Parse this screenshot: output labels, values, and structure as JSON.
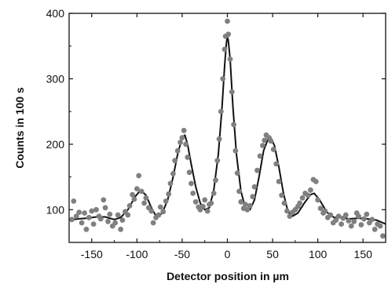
{
  "chart_data": {
    "type": "scatter",
    "title": "",
    "xlabel": "Detector position in µm",
    "ylabel": "Counts in 100 s",
    "xlim": [
      -175,
      175
    ],
    "ylim": [
      50,
      400
    ],
    "x_ticks": [
      -150,
      -100,
      -50,
      0,
      50,
      100,
      150
    ],
    "x_tick_labels": [
      "-150",
      "-100",
      "-50",
      "0",
      "50",
      "100",
      "150"
    ],
    "y_ticks": [
      100,
      200,
      300,
      400
    ],
    "y_tick_labels": [
      "100",
      "200",
      "300",
      "400"
    ],
    "grid": false,
    "legend": "none",
    "colors": {
      "points": "#808080",
      "fit": "#111111",
      "axes": "#111111"
    },
    "series": [
      {
        "type": "scatter",
        "values_xy": [
          [
            -172,
            85
          ],
          [
            -170,
            113
          ],
          [
            -167,
            90
          ],
          [
            -164,
            96
          ],
          [
            -161,
            80
          ],
          [
            -158,
            95
          ],
          [
            -156,
            70
          ],
          [
            -153,
            88
          ],
          [
            -150,
            98
          ],
          [
            -148,
            78
          ],
          [
            -145,
            100
          ],
          [
            -142,
            90
          ],
          [
            -140,
            86
          ],
          [
            -137,
            115
          ],
          [
            -135,
            103
          ],
          [
            -132,
            82
          ],
          [
            -130,
            93
          ],
          [
            -127,
            75
          ],
          [
            -124,
            80
          ],
          [
            -121,
            92
          ],
          [
            -118,
            70
          ],
          [
            -116,
            84
          ],
          [
            -113,
            97
          ],
          [
            -110,
            92
          ],
          [
            -108,
            106
          ],
          [
            -105,
            123
          ],
          [
            -103,
            116
          ],
          [
            -100,
            132
          ],
          [
            -98,
            152
          ],
          [
            -95,
            128
          ],
          [
            -92,
            110
          ],
          [
            -90,
            118
          ],
          [
            -87,
            103
          ],
          [
            -84,
            98
          ],
          [
            -82,
            80
          ],
          [
            -79,
            88
          ],
          [
            -76,
            92
          ],
          [
            -74,
            104
          ],
          [
            -71,
            97
          ],
          [
            -68,
            113
          ],
          [
            -65,
            124
          ],
          [
            -63,
            140
          ],
          [
            -60,
            155
          ],
          [
            -58,
            175
          ],
          [
            -55,
            190
          ],
          [
            -52,
            203
          ],
          [
            -50,
            210
          ],
          [
            -48,
            221
          ],
          [
            -46,
            200
          ],
          [
            -44,
            180
          ],
          [
            -42,
            157
          ],
          [
            -40,
            140
          ],
          [
            -38,
            125
          ],
          [
            -35,
            112
          ],
          [
            -32,
            104
          ],
          [
            -30,
            100
          ],
          [
            -27,
            105
          ],
          [
            -25,
            115
          ],
          [
            -22,
            98
          ],
          [
            -20,
            108
          ],
          [
            -18,
            110
          ],
          [
            -15,
            125
          ],
          [
            -13,
            145
          ],
          [
            -11,
            175
          ],
          [
            -9,
            208
          ],
          [
            -7,
            250
          ],
          [
            -5,
            300
          ],
          [
            -3,
            345
          ],
          [
            -2,
            365
          ],
          [
            0,
            388
          ],
          [
            1,
            368
          ],
          [
            3,
            330
          ],
          [
            5,
            280
          ],
          [
            7,
            230
          ],
          [
            9,
            190
          ],
          [
            11,
            156
          ],
          [
            13,
            128
          ],
          [
            15,
            112
          ],
          [
            18,
            102
          ],
          [
            20,
            108
          ],
          [
            22,
            100
          ],
          [
            25,
            106
          ],
          [
            28,
            120
          ],
          [
            30,
            135
          ],
          [
            33,
            160
          ],
          [
            36,
            182
          ],
          [
            39,
            198
          ],
          [
            41,
            206
          ],
          [
            43,
            214
          ],
          [
            46,
            210
          ],
          [
            48,
            205
          ],
          [
            51,
            192
          ],
          [
            54,
            170
          ],
          [
            57,
            143
          ],
          [
            60,
            122
          ],
          [
            63,
            110
          ],
          [
            66,
            98
          ],
          [
            69,
            90
          ],
          [
            72,
            96
          ],
          [
            75,
            100
          ],
          [
            78,
            105
          ],
          [
            80,
            110
          ],
          [
            83,
            118
          ],
          [
            86,
            125
          ],
          [
            89,
            122
          ],
          [
            92,
            130
          ],
          [
            95,
            146
          ],
          [
            98,
            143
          ],
          [
            100,
            115
          ],
          [
            103,
            102
          ],
          [
            106,
            95
          ],
          [
            108,
            98
          ],
          [
            111,
            88
          ],
          [
            114,
            92
          ],
          [
            117,
            80
          ],
          [
            120,
            84
          ],
          [
            123,
            90
          ],
          [
            126,
            78
          ],
          [
            128,
            87
          ],
          [
            131,
            92
          ],
          [
            134,
            83
          ],
          [
            137,
            75
          ],
          [
            140,
            82
          ],
          [
            143,
            95
          ],
          [
            145,
            90
          ],
          [
            148,
            77
          ],
          [
            151,
            86
          ],
          [
            154,
            93
          ],
          [
            157,
            80
          ],
          [
            160,
            85
          ],
          [
            163,
            70
          ],
          [
            166,
            78
          ],
          [
            169,
            75
          ],
          [
            172,
            60
          ]
        ]
      },
      {
        "type": "line",
        "values_xy": [
          [
            -175,
            84
          ],
          [
            -165,
            86
          ],
          [
            -155,
            87
          ],
          [
            -145,
            89
          ],
          [
            -135,
            89
          ],
          [
            -125,
            85
          ],
          [
            -118,
            88
          ],
          [
            -110,
            100
          ],
          [
            -102,
            120
          ],
          [
            -96,
            130
          ],
          [
            -90,
            122
          ],
          [
            -84,
            103
          ],
          [
            -78,
            88
          ],
          [
            -72,
            95
          ],
          [
            -66,
            115
          ],
          [
            -60,
            150
          ],
          [
            -55,
            185
          ],
          [
            -50,
            210
          ],
          [
            -47,
            214
          ],
          [
            -44,
            200
          ],
          [
            -40,
            170
          ],
          [
            -35,
            135
          ],
          [
            -30,
            110
          ],
          [
            -25,
            100
          ],
          [
            -20,
            103
          ],
          [
            -15,
            130
          ],
          [
            -10,
            185
          ],
          [
            -6,
            255
          ],
          [
            -3,
            320
          ],
          [
            -1,
            355
          ],
          [
            0,
            365
          ],
          [
            1,
            358
          ],
          [
            3,
            330
          ],
          [
            6,
            260
          ],
          [
            10,
            185
          ],
          [
            15,
            128
          ],
          [
            20,
            102
          ],
          [
            25,
            100
          ],
          [
            30,
            115
          ],
          [
            35,
            150
          ],
          [
            40,
            190
          ],
          [
            45,
            208
          ],
          [
            48,
            210
          ],
          [
            52,
            198
          ],
          [
            57,
            165
          ],
          [
            62,
            125
          ],
          [
            67,
            97
          ],
          [
            72,
            90
          ],
          [
            78,
            95
          ],
          [
            85,
            110
          ],
          [
            92,
            123
          ],
          [
            96,
            125
          ],
          [
            102,
            115
          ],
          [
            110,
            96
          ],
          [
            118,
            88
          ],
          [
            126,
            88
          ],
          [
            135,
            86
          ],
          [
            145,
            87
          ],
          [
            155,
            86
          ],
          [
            165,
            84
          ],
          [
            175,
            78
          ]
        ]
      }
    ]
  }
}
